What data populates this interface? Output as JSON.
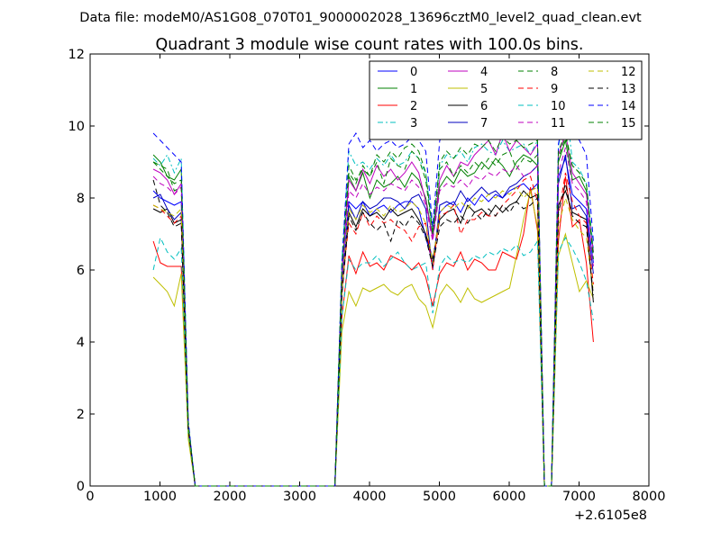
{
  "chart_data": {
    "type": "line",
    "suptitle": "Data file: modeM0/AS1G08_070T01_9000002028_13696cztM0_level2_quad_clean.evt",
    "title": "Quadrant 3 module wise count rates with 100.0s bins.",
    "xlabel": "",
    "ylabel": "",
    "x_offset_label": "+2.6105e8",
    "xlim": [
      0,
      8000
    ],
    "ylim": [
      0,
      12
    ],
    "xticks": [
      0,
      1000,
      2000,
      3000,
      4000,
      5000,
      6000,
      7000,
      8000
    ],
    "yticks": [
      0,
      2,
      4,
      6,
      8,
      10,
      12
    ],
    "legend": {
      "placement": "top-right",
      "columns": 4
    },
    "x": [
      905,
      1005,
      1105,
      1205,
      1305,
      1405,
      1505,
      1605,
      3505,
      3605,
      3705,
      3805,
      3905,
      4005,
      4105,
      4205,
      4305,
      4405,
      4505,
      4605,
      4705,
      4805,
      4905,
      5005,
      5105,
      5205,
      5305,
      5405,
      5505,
      5605,
      5705,
      5805,
      5905,
      6005,
      6105,
      6205,
      6305,
      6405,
      6505,
      6605,
      6705,
      6805,
      6905,
      7005,
      7105,
      7205
    ],
    "series": [
      {
        "name": "0",
        "color": "#0000ff",
        "dash": "solid",
        "values": [
          8.2,
          8.0,
          7.9,
          7.8,
          7.9,
          1.6,
          0,
          0,
          0,
          5.6,
          7.9,
          7.7,
          7.9,
          7.5,
          7.7,
          7.8,
          7.6,
          7.8,
          7.9,
          7.9,
          7.7,
          6.9,
          6.2,
          7.6,
          7.8,
          7.9,
          7.6,
          8.0,
          7.8,
          8.1,
          7.9,
          8.1,
          8.0,
          8.2,
          8.3,
          8.4,
          8.2,
          8.4,
          0,
          0,
          8.6,
          9.1,
          8.1,
          7.9,
          7.7,
          6.2
        ]
      },
      {
        "name": "1",
        "color": "#008000",
        "dash": "solid",
        "values": [
          9.2,
          9.0,
          8.6,
          8.5,
          8.8,
          1.7,
          0,
          0,
          0,
          6.0,
          8.6,
          8.2,
          8.7,
          8.0,
          8.5,
          8.3,
          8.4,
          8.6,
          8.3,
          8.7,
          8.5,
          8.0,
          6.9,
          8.3,
          8.6,
          8.4,
          8.8,
          8.6,
          8.7,
          9.0,
          8.8,
          9.1,
          8.9,
          8.6,
          9.0,
          9.2,
          9.1,
          8.9,
          0,
          0,
          9.0,
          9.6,
          8.5,
          8.6,
          8.2,
          6.5
        ]
      },
      {
        "name": "2",
        "color": "#ff0000",
        "dash": "solid",
        "values": [
          6.8,
          6.2,
          6.1,
          6.1,
          6.1,
          1.5,
          0,
          0,
          0,
          4.7,
          6.4,
          5.9,
          6.5,
          6.1,
          6.2,
          6.0,
          6.4,
          6.3,
          6.2,
          6.0,
          6.2,
          5.8,
          5.0,
          5.9,
          6.2,
          6.1,
          6.5,
          6.0,
          6.3,
          6.2,
          6.0,
          6.0,
          6.5,
          6.4,
          6.3,
          7.0,
          8.3,
          7.1,
          0,
          0,
          6.8,
          8.6,
          7.2,
          7.4,
          6.2,
          4.0
        ]
      },
      {
        "name": "3",
        "color": "#00bfbf",
        "dash": "dashdot",
        "values": [
          9.1,
          8.9,
          9.2,
          8.7,
          9.1,
          1.8,
          0,
          0,
          0,
          6.3,
          9.3,
          8.9,
          9.0,
          8.8,
          9.1,
          8.9,
          9.2,
          8.9,
          9.0,
          9.3,
          9.1,
          8.7,
          7.1,
          8.9,
          9.2,
          9.1,
          9.3,
          9.0,
          9.4,
          9.5,
          9.3,
          9.2,
          9.6,
          9.3,
          9.4,
          9.5,
          9.2,
          9.6,
          0,
          0,
          9.4,
          10.8,
          9.0,
          8.8,
          8.4,
          6.6
        ]
      },
      {
        "name": "4",
        "color": "#bf00bf",
        "dash": "solid",
        "values": [
          8.8,
          8.7,
          8.5,
          8.1,
          8.4,
          1.7,
          0,
          0,
          0,
          5.9,
          8.5,
          8.2,
          8.8,
          8.4,
          8.9,
          8.6,
          8.8,
          8.5,
          8.7,
          9.0,
          8.7,
          7.9,
          6.9,
          8.5,
          8.9,
          8.6,
          9.0,
          8.9,
          9.2,
          9.4,
          9.6,
          9.2,
          9.8,
          9.3,
          9.6,
          9.4,
          9.2,
          9.5,
          0,
          0,
          9.2,
          9.8,
          8.7,
          8.4,
          8.1,
          6.5
        ]
      },
      {
        "name": "5",
        "color": "#bfbf00",
        "dash": "solid",
        "values": [
          5.8,
          5.6,
          5.4,
          5.0,
          5.9,
          1.3,
          0,
          0,
          0,
          4.3,
          5.4,
          5.0,
          5.5,
          5.4,
          5.5,
          5.6,
          5.4,
          5.3,
          5.5,
          5.6,
          5.2,
          5.0,
          4.4,
          5.3,
          5.6,
          5.4,
          5.1,
          5.5,
          5.2,
          5.1,
          5.2,
          5.3,
          5.4,
          5.5,
          6.4,
          7.4,
          8.2,
          7.2,
          0,
          0,
          6.4,
          7.0,
          6.2,
          5.4,
          5.7,
          5.2
        ]
      },
      {
        "name": "6",
        "color": "#000000",
        "dash": "solid",
        "values": [
          7.7,
          7.6,
          7.7,
          7.3,
          7.4,
          1.6,
          0,
          0,
          0,
          5.4,
          7.6,
          7.2,
          7.7,
          7.5,
          7.6,
          7.4,
          7.7,
          7.5,
          7.6,
          7.7,
          7.4,
          7.0,
          6.3,
          7.4,
          7.6,
          7.7,
          7.3,
          7.8,
          7.6,
          7.7,
          7.5,
          7.8,
          7.6,
          7.8,
          7.9,
          8.2,
          8.0,
          8.1,
          0,
          0,
          7.8,
          8.2,
          7.6,
          7.5,
          7.4,
          5.1
        ]
      },
      {
        "name": "7",
        "color": "#0000bf",
        "dash": "solid",
        "values": [
          8.0,
          8.1,
          7.7,
          7.4,
          7.6,
          1.6,
          0,
          0,
          0,
          5.5,
          7.8,
          7.4,
          7.9,
          7.7,
          7.8,
          8.0,
          8.0,
          7.9,
          7.7,
          8.0,
          8.1,
          7.7,
          6.0,
          7.8,
          7.9,
          7.8,
          8.2,
          7.9,
          8.1,
          8.3,
          8.1,
          8.2,
          8.0,
          8.3,
          8.4,
          8.6,
          8.7,
          8.9,
          0,
          0,
          8.4,
          9.2,
          7.7,
          7.8,
          7.5,
          5.9
        ]
      },
      {
        "name": "8",
        "color": "#008000",
        "dash": "dashed",
        "values": [
          9.0,
          8.9,
          8.8,
          8.2,
          8.3,
          1.7,
          0,
          0,
          0,
          6.1,
          8.9,
          8.5,
          8.8,
          8.6,
          9.0,
          8.4,
          9.1,
          8.9,
          8.8,
          9.3,
          9.1,
          8.5,
          7.0,
          8.8,
          9.0,
          8.6,
          8.9,
          8.7,
          9.0,
          8.8,
          9.1,
          8.9,
          9.2,
          9.3,
          8.8,
          9.1,
          9.0,
          9.2,
          0,
          0,
          9.1,
          9.7,
          8.9,
          8.7,
          8.4,
          6.4
        ]
      },
      {
        "name": "9",
        "color": "#ff0000",
        "dash": "dashed",
        "values": [
          7.8,
          7.7,
          7.5,
          7.3,
          7.5,
          1.6,
          0,
          0,
          0,
          5.5,
          7.3,
          7.0,
          7.6,
          7.2,
          7.5,
          7.3,
          7.4,
          7.2,
          7.1,
          6.8,
          7.2,
          7.3,
          6.0,
          7.5,
          7.6,
          7.8,
          7.0,
          7.4,
          7.4,
          7.6,
          7.5,
          7.5,
          7.8,
          8.0,
          8.2,
          8.5,
          8.6,
          7.9,
          0,
          0,
          7.5,
          8.7,
          7.9,
          7.5,
          7.3,
          5.6
        ]
      },
      {
        "name": "10",
        "color": "#00bfbf",
        "dash": "dashed",
        "values": [
          6.0,
          6.9,
          6.5,
          6.3,
          6.6,
          1.5,
          0,
          0,
          0,
          4.7,
          6.3,
          6.0,
          6.2,
          6.2,
          6.4,
          6.1,
          6.3,
          6.5,
          6.2,
          6.0,
          6.1,
          6.2,
          4.8,
          6.1,
          6.4,
          6.2,
          6.3,
          6.2,
          6.4,
          6.3,
          6.5,
          6.4,
          6.6,
          6.5,
          6.7,
          6.4,
          6.5,
          6.8,
          0,
          0,
          6.5,
          6.9,
          6.6,
          6.2,
          5.7,
          4.6
        ]
      },
      {
        "name": "11",
        "color": "#bf00bf",
        "dash": "dashed",
        "values": [
          8.6,
          8.4,
          8.3,
          8.1,
          8.3,
          1.7,
          0,
          0,
          0,
          5.9,
          8.2,
          8.0,
          8.4,
          8.1,
          8.3,
          8.2,
          8.4,
          8.3,
          8.2,
          8.5,
          8.3,
          7.8,
          6.8,
          8.2,
          8.4,
          8.3,
          8.5,
          8.3,
          8.6,
          8.5,
          8.7,
          8.6,
          8.8,
          8.7,
          8.9,
          8.6,
          8.7,
          8.9,
          0,
          0,
          8.7,
          9.4,
          8.4,
          8.2,
          7.9,
          6.1
        ]
      },
      {
        "name": "12",
        "color": "#bfbf00",
        "dash": "dashed",
        "values": [
          7.8,
          7.7,
          7.6,
          7.5,
          7.7,
          1.6,
          0,
          0,
          0,
          5.5,
          7.7,
          7.4,
          7.8,
          7.6,
          7.7,
          7.5,
          7.8,
          7.6,
          7.7,
          7.9,
          7.7,
          7.3,
          6.2,
          7.6,
          7.8,
          7.7,
          7.9,
          7.7,
          8.0,
          7.9,
          8.1,
          8.0,
          8.2,
          8.1,
          8.3,
          8.0,
          8.2,
          8.3,
          0,
          0,
          7.2,
          8.0,
          7.4,
          7.1,
          6.9,
          5.4
        ]
      },
      {
        "name": "13",
        "color": "#000000",
        "dash": "dashed",
        "values": [
          8.5,
          7.8,
          7.6,
          7.2,
          7.3,
          1.6,
          0,
          0,
          0,
          5.3,
          7.5,
          7.1,
          7.6,
          7.3,
          7.1,
          7.3,
          6.8,
          7.4,
          7.2,
          7.5,
          7.3,
          6.9,
          6.1,
          7.2,
          7.4,
          7.3,
          7.5,
          7.3,
          7.6,
          7.4,
          7.7,
          7.5,
          7.8,
          7.6,
          7.9,
          7.7,
          7.8,
          8.0,
          0,
          0,
          7.6,
          8.4,
          7.5,
          7.3,
          7.2,
          5.3
        ]
      },
      {
        "name": "14",
        "color": "#0000ff",
        "dash": "dashed",
        "values": [
          9.8,
          9.6,
          9.4,
          9.2,
          9.0,
          1.8,
          0,
          0,
          0,
          6.2,
          9.5,
          9.8,
          9.4,
          9.6,
          9.3,
          9.5,
          9.6,
          9.4,
          9.5,
          9.7,
          9.6,
          9.3,
          7.2,
          9.6,
          9.8,
          9.7,
          9.9,
          9.8,
          10.0,
          10.0,
          9.9,
          10.0,
          10.0,
          10.0,
          9.8,
          10.0,
          9.9,
          9.6,
          0,
          0,
          9.5,
          10.5,
          9.8,
          9.6,
          9.2,
          6.8
        ]
      },
      {
        "name": "15",
        "color": "#008000",
        "dash": "dashed",
        "values": [
          9.0,
          8.8,
          8.6,
          8.4,
          8.5,
          1.7,
          0,
          0,
          0,
          6.0,
          8.7,
          8.4,
          8.9,
          8.6,
          9.2,
          9.0,
          9.3,
          9.1,
          9.4,
          9.5,
          9.3,
          8.7,
          7.0,
          9.0,
          9.3,
          9.1,
          9.4,
          9.2,
          9.5,
          9.4,
          9.6,
          9.3,
          9.7,
          9.5,
          9.6,
          9.4,
          9.5,
          9.6,
          0,
          0,
          9.3,
          9.8,
          8.9,
          8.7,
          8.4,
          6.3
        ]
      }
    ]
  }
}
